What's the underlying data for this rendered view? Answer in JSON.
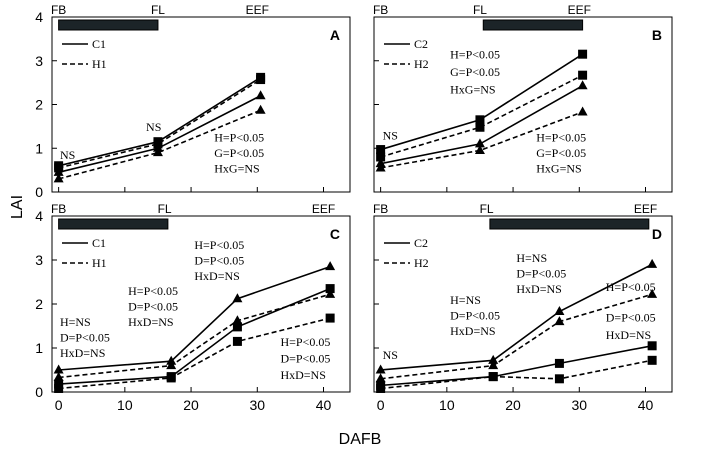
{
  "figure": {
    "ylabel": "LAI",
    "xlabel": "DAFB"
  },
  "chart_data": [
    {
      "type": "line",
      "panel_label": "A",
      "x_axis": {
        "ticks": [],
        "xlim": [
          -1,
          44
        ]
      },
      "y_axis": {
        "ticks": [
          0,
          1,
          2,
          3,
          4
        ],
        "ylim": [
          0,
          4
        ]
      },
      "stages": [
        {
          "label": "FB",
          "x": 0
        },
        {
          "label": "FL",
          "x": 15
        },
        {
          "label": "EEF",
          "x": 30
        }
      ],
      "stage_bar": [
        0,
        15
      ],
      "legend": [
        {
          "name": "C1",
          "style": "solid"
        },
        {
          "name": "H1",
          "style": "dashed"
        }
      ],
      "lines": [
        {
          "legend": "C1",
          "style": "solid",
          "marker": "square",
          "x": [
            0,
            15,
            30.5
          ],
          "y": [
            0.6,
            1.15,
            2.62
          ]
        },
        {
          "legend": "H1",
          "style": "dashed",
          "marker": "square",
          "x": [
            0,
            15,
            30.5
          ],
          "y": [
            0.55,
            1.1,
            2.57
          ]
        },
        {
          "legend": "C1",
          "style": "solid",
          "marker": "triangle",
          "x": [
            0,
            15,
            30.5
          ],
          "y": [
            0.45,
            1.0,
            2.2
          ]
        },
        {
          "legend": "H1",
          "style": "dashed",
          "marker": "triangle",
          "x": [
            0,
            15,
            30.5
          ],
          "y": [
            0.3,
            0.9,
            1.87
          ]
        }
      ],
      "annotations": [
        {
          "text": "NS",
          "x": 0.2,
          "y": 0.75,
          "font": "serif"
        },
        {
          "text": "NS",
          "x": 13.2,
          "y": 1.4,
          "font": "serif"
        },
        {
          "text": "H=P<0.05",
          "x": 23.5,
          "y": 1.15,
          "font": "serif"
        },
        {
          "text": "G=P<0.05",
          "x": 23.5,
          "y": 0.8,
          "font": "serif"
        },
        {
          "text": "HxG=NS",
          "x": 23.5,
          "y": 0.45,
          "font": "serif"
        }
      ]
    },
    {
      "type": "line",
      "panel_label": "B",
      "x_axis": {
        "ticks": [],
        "xlim": [
          -1,
          44
        ]
      },
      "y_axis": {
        "ticks": [],
        "ylim": [
          0,
          4
        ]
      },
      "stages": [
        {
          "label": "FB",
          "x": 0
        },
        {
          "label": "FL",
          "x": 15
        },
        {
          "label": "EEF",
          "x": 30
        }
      ],
      "stage_bar": [
        15.5,
        30.5
      ],
      "legend": [
        {
          "name": "C2",
          "style": "solid"
        },
        {
          "name": "H2",
          "style": "dashed"
        }
      ],
      "lines": [
        {
          "legend": "C2",
          "style": "solid",
          "marker": "square",
          "x": [
            0,
            15,
            30.5
          ],
          "y": [
            0.97,
            1.65,
            3.15
          ]
        },
        {
          "legend": "H2",
          "style": "dashed",
          "marker": "square",
          "x": [
            0,
            15,
            30.5
          ],
          "y": [
            0.8,
            1.48,
            2.67
          ]
        },
        {
          "legend": "C2",
          "style": "solid",
          "marker": "triangle",
          "x": [
            0,
            15,
            30.5
          ],
          "y": [
            0.65,
            1.1,
            2.43
          ]
        },
        {
          "legend": "H2",
          "style": "dashed",
          "marker": "triangle",
          "x": [
            0,
            15,
            30.5
          ],
          "y": [
            0.55,
            0.95,
            1.83
          ]
        }
      ],
      "annotations": [
        {
          "text": "NS",
          "x": 0.3,
          "y": 1.2,
          "font": "serif"
        },
        {
          "text": "H=P<0.05",
          "x": 10.5,
          "y": 3.05,
          "font": "serif"
        },
        {
          "text": "G=P<0.05",
          "x": 10.5,
          "y": 2.65,
          "font": "serif"
        },
        {
          "text": "HxG=NS",
          "x": 10.5,
          "y": 2.25,
          "font": "serif"
        },
        {
          "text": "H=P<0.05",
          "x": 23.5,
          "y": 1.15,
          "font": "serif"
        },
        {
          "text": "G=P<0.05",
          "x": 23.5,
          "y": 0.8,
          "font": "serif"
        },
        {
          "text": "HxG=NS",
          "x": 23.5,
          "y": 0.45,
          "font": "serif"
        }
      ]
    },
    {
      "type": "line",
      "panel_label": "C",
      "x_axis": {
        "ticks": [
          0,
          10,
          20,
          30,
          40
        ],
        "xlim": [
          -1,
          44
        ]
      },
      "y_axis": {
        "ticks": [
          0,
          1,
          2,
          3,
          4
        ],
        "ylim": [
          0,
          4
        ]
      },
      "stages": [
        {
          "label": "FB",
          "x": 0
        },
        {
          "label": "FL",
          "x": 16
        },
        {
          "label": "EEF",
          "x": 40
        }
      ],
      "stage_bar": [
        0,
        16.5
      ],
      "legend": [
        {
          "name": "C1",
          "style": "solid"
        },
        {
          "name": "H1",
          "style": "dashed"
        }
      ],
      "lines": [
        {
          "legend": "C1",
          "style": "solid",
          "marker": "triangle",
          "x": [
            0,
            17,
            27,
            41
          ],
          "y": [
            0.5,
            0.7,
            2.12,
            2.85
          ]
        },
        {
          "legend": "H1",
          "style": "dashed",
          "marker": "triangle",
          "x": [
            0,
            17,
            27,
            41
          ],
          "y": [
            0.33,
            0.6,
            1.62,
            2.22
          ]
        },
        {
          "legend": "C1",
          "style": "solid",
          "marker": "square",
          "x": [
            0,
            17,
            27,
            41
          ],
          "y": [
            0.18,
            0.35,
            1.48,
            2.35
          ]
        },
        {
          "legend": "H1",
          "style": "dashed",
          "marker": "square",
          "x": [
            0,
            17,
            27,
            41
          ],
          "y": [
            0.08,
            0.32,
            1.15,
            1.68
          ]
        }
      ],
      "annotations": [
        {
          "text": "H=NS",
          "x": 0.2,
          "y": 1.5,
          "font": "serif"
        },
        {
          "text": "D=P<0.05",
          "x": 0.2,
          "y": 1.15,
          "font": "serif"
        },
        {
          "text": "HxD=NS",
          "x": 0.2,
          "y": 0.8,
          "font": "serif"
        },
        {
          "text": "H=P<0.05",
          "x": 10.5,
          "y": 2.2,
          "font": "serif"
        },
        {
          "text": "D=P<0.05",
          "x": 10.5,
          "y": 1.85,
          "font": "serif"
        },
        {
          "text": "HxD=NS",
          "x": 10.5,
          "y": 1.5,
          "font": "serif"
        },
        {
          "text": "H=P<0.05",
          "x": 20.5,
          "y": 3.25,
          "font": "serif"
        },
        {
          "text": "D=P<0.05",
          "x": 20.5,
          "y": 2.9,
          "font": "serif"
        },
        {
          "text": "HxD=NS",
          "x": 20.5,
          "y": 2.55,
          "font": "serif"
        },
        {
          "text": "H=P<0.05",
          "x": 33.5,
          "y": 1.05,
          "font": "serif"
        },
        {
          "text": "D=P<0.05",
          "x": 33.5,
          "y": 0.67,
          "font": "serif"
        },
        {
          "text": "HxD=NS",
          "x": 33.5,
          "y": 0.3,
          "font": "serif"
        }
      ]
    },
    {
      "type": "line",
      "panel_label": "D",
      "x_axis": {
        "ticks": [
          0,
          10,
          20,
          30,
          40
        ],
        "xlim": [
          -1,
          44
        ]
      },
      "y_axis": {
        "ticks": [],
        "ylim": [
          0,
          4
        ]
      },
      "stages": [
        {
          "label": "FB",
          "x": 0
        },
        {
          "label": "FL",
          "x": 16
        },
        {
          "label": "EEF",
          "x": 40
        }
      ],
      "stage_bar": [
        16.5,
        40.5
      ],
      "legend": [
        {
          "name": "C2",
          "style": "solid"
        },
        {
          "name": "H2",
          "style": "dashed"
        }
      ],
      "lines": [
        {
          "legend": "C2",
          "style": "solid",
          "marker": "triangle",
          "x": [
            0,
            17,
            27,
            41
          ],
          "y": [
            0.5,
            0.72,
            1.83,
            2.9
          ]
        },
        {
          "legend": "H2",
          "style": "dashed",
          "marker": "triangle",
          "x": [
            0,
            17,
            27,
            41
          ],
          "y": [
            0.3,
            0.6,
            1.6,
            2.22
          ]
        },
        {
          "legend": "C2",
          "style": "solid",
          "marker": "square",
          "x": [
            0,
            17,
            27,
            41
          ],
          "y": [
            0.15,
            0.35,
            0.65,
            1.05
          ]
        },
        {
          "legend": "H2",
          "style": "dashed",
          "marker": "square",
          "x": [
            0,
            17,
            27,
            41
          ],
          "y": [
            0.08,
            0.35,
            0.3,
            0.72
          ]
        }
      ],
      "annotations": [
        {
          "text": "NS",
          "x": 0.3,
          "y": 0.75,
          "font": "serif"
        },
        {
          "text": "H=NS",
          "x": 10.5,
          "y": 2.0,
          "font": "serif"
        },
        {
          "text": "D=P<0.05",
          "x": 10.5,
          "y": 1.65,
          "font": "serif"
        },
        {
          "text": "HxD=NS",
          "x": 10.5,
          "y": 1.3,
          "font": "serif"
        },
        {
          "text": "H=NS",
          "x": 20.5,
          "y": 2.95,
          "font": "serif"
        },
        {
          "text": "D=P<0.05",
          "x": 20.5,
          "y": 2.6,
          "font": "serif"
        },
        {
          "text": "HxD=NS",
          "x": 20.5,
          "y": 2.25,
          "font": "serif"
        },
        {
          "text": "H=P<0.05",
          "x": 34.0,
          "y": 2.3,
          "font": "serif"
        },
        {
          "text": "D=P<0.05",
          "x": 34.0,
          "y": 1.6,
          "font": "serif"
        },
        {
          "text": "HxD=NS",
          "x": 34.0,
          "y": 1.2,
          "font": "serif"
        }
      ]
    }
  ]
}
